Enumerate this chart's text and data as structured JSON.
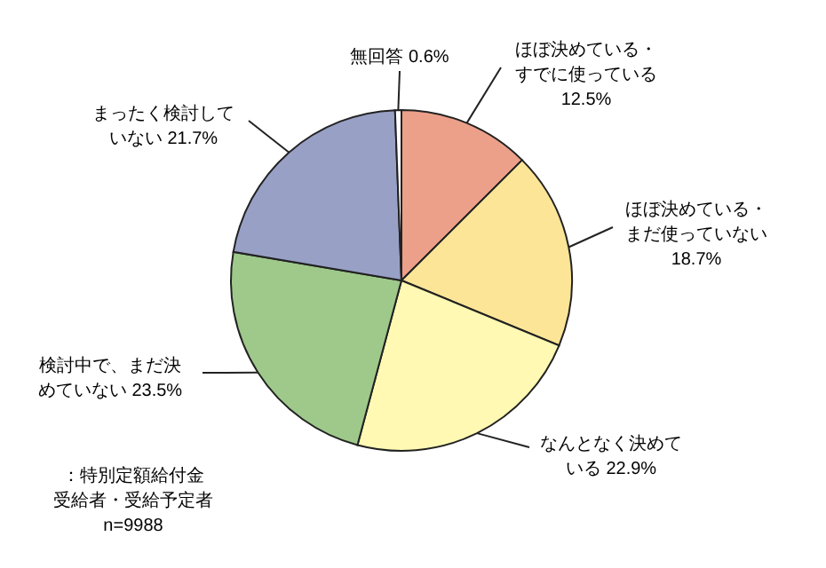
{
  "chart_data": {
    "type": "pie",
    "categories": [
      "ほぼ決めている・すでに使っている",
      "ほぼ決めている・まだ使っていない",
      "なんとなく決めている",
      "検討中で、まだ決めていない",
      "まったく検討していない",
      "無回答"
    ],
    "values": [
      12.5,
      18.7,
      22.9,
      23.5,
      21.7,
      0.6
    ],
    "colors": [
      "#eca08a",
      "#fde597",
      "#fff9b3",
      "#9ec98a",
      "#98a0c6",
      "#ffffff"
    ],
    "value_labels": [
      "12.5%",
      "18.7%",
      "22.9%",
      "23.5%",
      "21.7%",
      "0.6%"
    ],
    "annotations": [
      "：特別定額給付金",
      "受給者・受給予定者",
      "n=9988"
    ]
  }
}
